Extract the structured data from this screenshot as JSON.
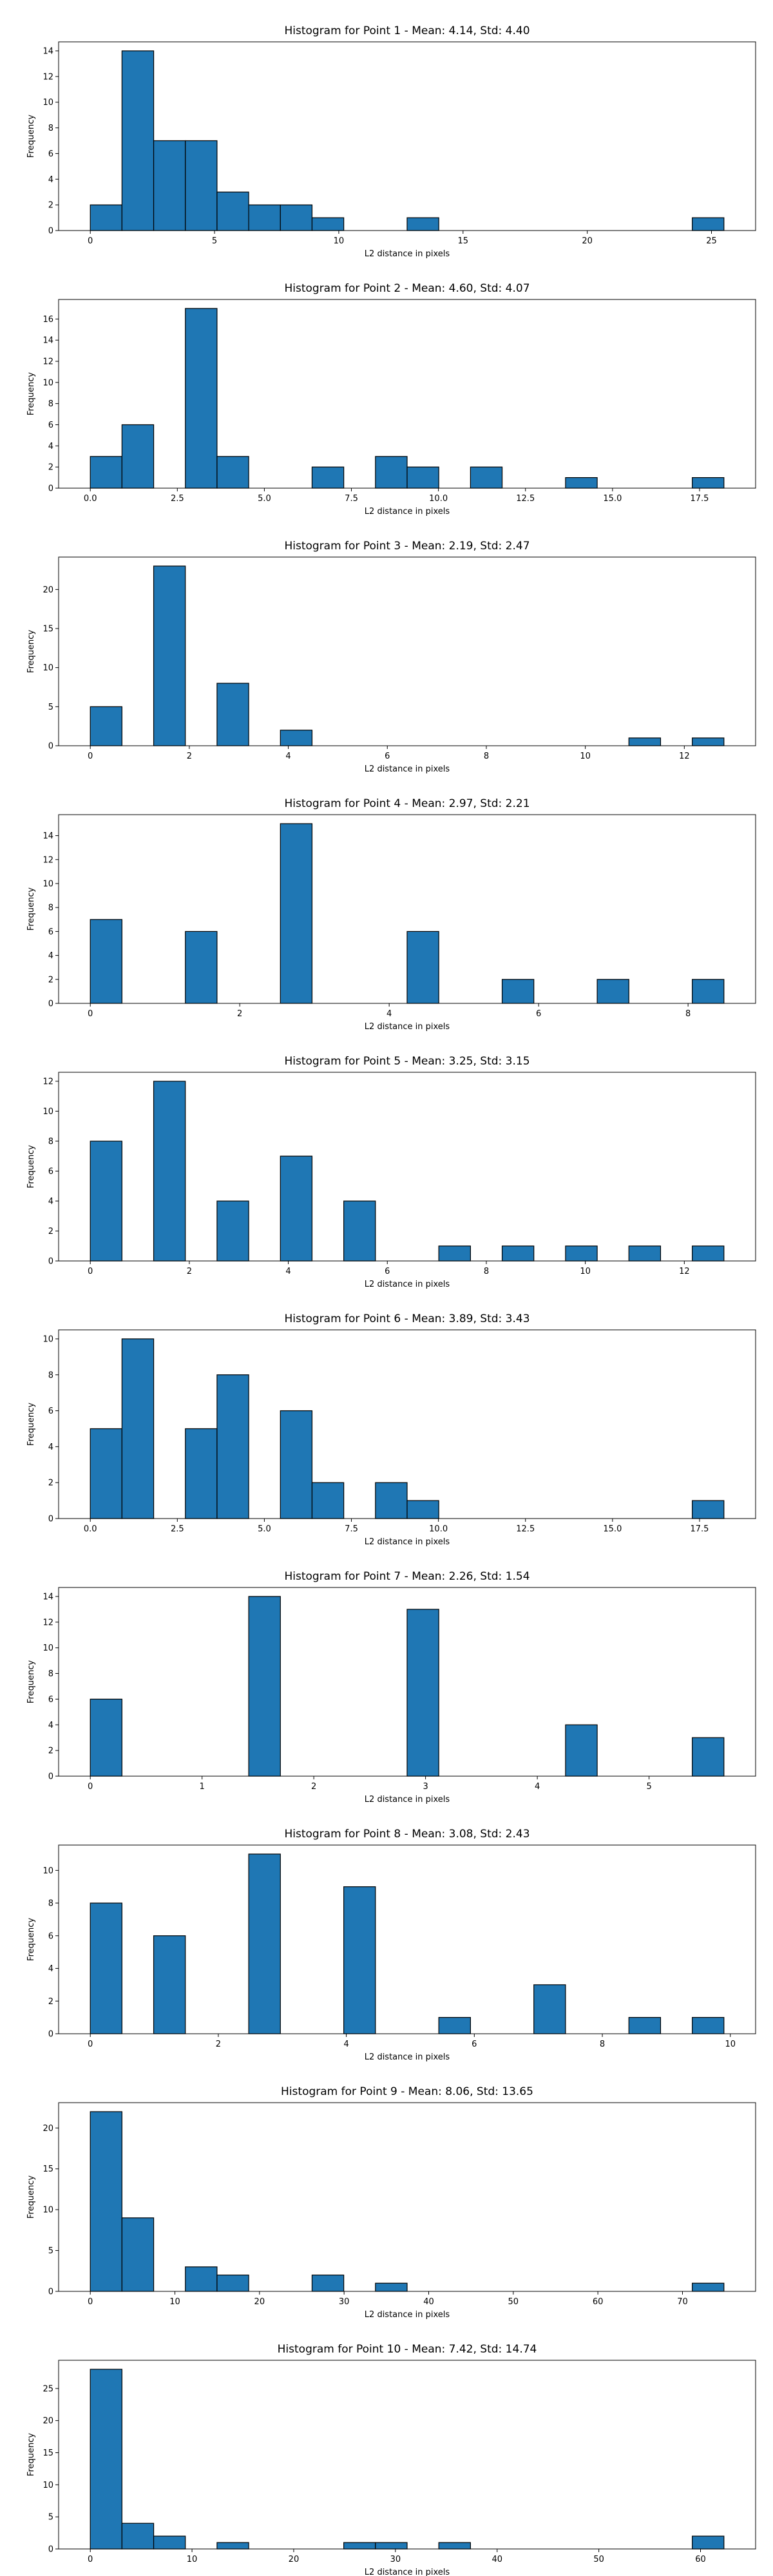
{
  "chart_data": [
    {
      "type": "histogram",
      "title": "Histogram for Point 1 - Mean: 4.14, Std: 4.40",
      "xlabel": "L2 distance in pixels",
      "ylabel": "Frequency",
      "color": "#1f77b4",
      "edgecolor": "#000000",
      "bins": [
        0,
        1.275,
        2.55,
        3.825,
        5.1,
        6.375,
        7.65,
        8.925,
        10.2,
        11.475,
        12.75,
        14.025,
        15.3,
        16.575,
        17.85,
        19.125,
        20.4,
        21.675,
        22.95,
        24.225,
        25.5
      ],
      "values": [
        2,
        14,
        7,
        7,
        3,
        2,
        2,
        1,
        0,
        0,
        1,
        0,
        0,
        0,
        0,
        0,
        0,
        0,
        0,
        1
      ],
      "xlim": [
        -1.275,
        26.775
      ],
      "xticks": [
        0,
        5,
        10,
        15,
        20,
        25
      ],
      "ylim": [
        0,
        14.7
      ],
      "yticks": [
        0,
        2,
        4,
        6,
        8,
        10,
        12,
        14
      ]
    },
    {
      "type": "histogram",
      "title": "Histogram for Point 2 - Mean: 4.60, Std: 4.07",
      "xlabel": "L2 distance in pixels",
      "ylabel": "Frequency",
      "color": "#1f77b4",
      "edgecolor": "#000000",
      "bins": [
        0,
        0.91,
        1.82,
        2.73,
        3.64,
        4.55,
        5.46,
        6.37,
        7.28,
        8.19,
        9.1,
        10.01,
        10.92,
        11.83,
        12.74,
        13.65,
        14.56,
        15.47,
        16.38,
        17.29,
        18.2
      ],
      "values": [
        3,
        6,
        0,
        17,
        3,
        0,
        0,
        2,
        0,
        3,
        2,
        0,
        2,
        0,
        0,
        1,
        0,
        0,
        0,
        1
      ],
      "xlim": [
        -0.91,
        19.11
      ],
      "xticks": [
        {
          "value": 0,
          "label": "0.0"
        },
        2.5,
        {
          "value": 5,
          "label": "5.0"
        },
        7.5,
        {
          "value": 10,
          "label": "10.0"
        },
        12.5,
        {
          "value": 15,
          "label": "15.0"
        },
        17.5
      ],
      "ylim": [
        0,
        17.85
      ],
      "yticks": [
        0,
        2,
        4,
        6,
        8,
        10,
        12,
        14,
        16
      ]
    },
    {
      "type": "histogram",
      "title": "Histogram for Point 3 - Mean: 2.19, Std: 2.47",
      "xlabel": "L2 distance in pixels",
      "ylabel": "Frequency",
      "color": "#1f77b4",
      "edgecolor": "#000000",
      "bins": [
        0,
        0.64,
        1.28,
        1.92,
        2.56,
        3.2,
        3.84,
        4.48,
        5.12,
        5.76,
        6.4,
        7.04,
        7.68,
        8.32,
        8.96,
        9.6,
        10.24,
        10.88,
        11.52,
        12.16,
        12.8
      ],
      "values": [
        5,
        0,
        23,
        0,
        8,
        0,
        2,
        0,
        0,
        0,
        0,
        0,
        0,
        0,
        0,
        0,
        0,
        1,
        0,
        1
      ],
      "xlim": [
        -0.64,
        13.44
      ],
      "xticks": [
        0,
        2,
        4,
        6,
        8,
        10,
        12
      ],
      "ylim": [
        0,
        24.15
      ],
      "yticks": [
        0,
        5,
        10,
        15,
        20
      ]
    },
    {
      "type": "histogram",
      "title": "Histogram for Point 4 - Mean: 2.97, Std: 2.21",
      "xlabel": "L2 distance in pixels",
      "ylabel": "Frequency",
      "color": "#1f77b4",
      "edgecolor": "#000000",
      "bins": [
        0,
        0.424,
        0.848,
        1.272,
        1.696,
        2.12,
        2.544,
        2.968,
        3.392,
        3.816,
        4.24,
        4.664,
        5.088,
        5.512,
        5.936,
        6.36,
        6.784,
        7.208,
        7.632,
        8.056,
        8.48
      ],
      "values": [
        7,
        0,
        0,
        6,
        0,
        0,
        15,
        0,
        0,
        0,
        6,
        0,
        0,
        2,
        0,
        0,
        2,
        0,
        0,
        2
      ],
      "xlim": [
        -0.424,
        8.904
      ],
      "xticks": [
        0,
        2,
        4,
        6,
        8
      ],
      "ylim": [
        0,
        15.75
      ],
      "yticks": [
        0,
        2,
        4,
        6,
        8,
        10,
        12,
        14
      ]
    },
    {
      "type": "histogram",
      "title": "Histogram for Point 5 - Mean: 3.25, Std: 3.15",
      "xlabel": "L2 distance in pixels",
      "ylabel": "Frequency",
      "color": "#1f77b4",
      "edgecolor": "#000000",
      "bins": [
        0,
        0.64,
        1.28,
        1.92,
        2.56,
        3.2,
        3.84,
        4.48,
        5.12,
        5.76,
        6.4,
        7.04,
        7.68,
        8.32,
        8.96,
        9.6,
        10.24,
        10.88,
        11.52,
        12.16,
        12.8
      ],
      "values": [
        8,
        0,
        12,
        0,
        4,
        0,
        7,
        0,
        4,
        0,
        0,
        1,
        0,
        1,
        0,
        1,
        0,
        1,
        0,
        1
      ],
      "xlim": [
        -0.64,
        13.44
      ],
      "xticks": [
        0,
        2,
        4,
        6,
        8,
        10,
        12
      ],
      "ylim": [
        0,
        12.6
      ],
      "yticks": [
        0,
        2,
        4,
        6,
        8,
        10,
        12
      ]
    },
    {
      "type": "histogram",
      "title": "Histogram for Point 6 - Mean: 3.89, Std: 3.43",
      "xlabel": "L2 distance in pixels",
      "ylabel": "Frequency",
      "color": "#1f77b4",
      "edgecolor": "#000000",
      "bins": [
        0,
        0.91,
        1.82,
        2.73,
        3.64,
        4.55,
        5.46,
        6.37,
        7.28,
        8.19,
        9.1,
        10.01,
        10.92,
        11.83,
        12.74,
        13.65,
        14.56,
        15.47,
        16.38,
        17.29,
        18.2
      ],
      "values": [
        5,
        10,
        0,
        5,
        8,
        0,
        6,
        2,
        0,
        2,
        1,
        0,
        0,
        0,
        0,
        0,
        0,
        0,
        0,
        1
      ],
      "xlim": [
        -0.91,
        19.11
      ],
      "xticks": [
        {
          "value": 0,
          "label": "0.0"
        },
        2.5,
        {
          "value": 5,
          "label": "5.0"
        },
        7.5,
        {
          "value": 10,
          "label": "10.0"
        },
        12.5,
        {
          "value": 15,
          "label": "15.0"
        },
        17.5
      ],
      "ylim": [
        0,
        10.5
      ],
      "yticks": [
        0,
        2,
        4,
        6,
        8,
        10
      ]
    },
    {
      "type": "histogram",
      "title": "Histogram for Point 7 - Mean: 2.26, Std: 1.54",
      "xlabel": "L2 distance in pixels",
      "ylabel": "Frequency",
      "color": "#1f77b4",
      "edgecolor": "#000000",
      "bins": [
        0,
        0.2835,
        0.567,
        0.8505,
        1.134,
        1.4175,
        1.701,
        1.9845,
        2.268,
        2.5515,
        2.835,
        3.1185,
        3.402,
        3.6855,
        3.969,
        4.2525,
        4.536,
        4.8195,
        5.103,
        5.3865,
        5.67
      ],
      "values": [
        6,
        0,
        0,
        0,
        0,
        14,
        0,
        0,
        0,
        0,
        13,
        0,
        0,
        0,
        0,
        4,
        0,
        0,
        0,
        3
      ],
      "xlim": [
        -0.2835,
        5.9535
      ],
      "xticks": [
        0,
        1,
        2,
        3,
        4,
        5
      ],
      "ylim": [
        0,
        14.7
      ],
      "yticks": [
        0,
        2,
        4,
        6,
        8,
        10,
        12,
        14
      ]
    },
    {
      "type": "histogram",
      "title": "Histogram for Point 8 - Mean: 3.08, Std: 2.43",
      "xlabel": "L2 distance in pixels",
      "ylabel": "Frequency",
      "color": "#1f77b4",
      "edgecolor": "#000000",
      "bins": [
        0,
        0.495,
        0.99,
        1.485,
        1.98,
        2.475,
        2.97,
        3.465,
        3.96,
        4.455,
        4.95,
        5.445,
        5.94,
        6.435,
        6.93,
        7.425,
        7.92,
        8.415,
        8.91,
        9.405,
        9.9
      ],
      "values": [
        8,
        0,
        6,
        0,
        0,
        11,
        0,
        0,
        9,
        0,
        0,
        1,
        0,
        0,
        3,
        0,
        0,
        1,
        0,
        1
      ],
      "xlim": [
        -0.495,
        10.395
      ],
      "xticks": [
        0,
        2,
        4,
        6,
        8,
        10
      ],
      "ylim": [
        0,
        11.55
      ],
      "yticks": [
        0,
        2,
        4,
        6,
        8,
        10
      ]
    },
    {
      "type": "histogram",
      "title": "Histogram for Point 9 - Mean: 8.06, Std: 13.65",
      "xlabel": "L2 distance in pixels",
      "ylabel": "Frequency",
      "color": "#1f77b4",
      "edgecolor": "#000000",
      "bins": [
        0,
        3.745,
        7.49,
        11.235,
        14.98,
        18.725,
        22.47,
        26.215,
        29.96,
        33.705,
        37.45,
        41.195,
        44.94,
        48.685,
        52.43,
        56.175,
        59.92,
        63.665,
        67.41,
        71.155,
        74.9
      ],
      "values": [
        22,
        9,
        0,
        3,
        2,
        0,
        0,
        2,
        0,
        1,
        0,
        0,
        0,
        0,
        0,
        0,
        0,
        0,
        0,
        1
      ],
      "xlim": [
        -3.745,
        78.645
      ],
      "xticks": [
        0,
        10,
        20,
        30,
        40,
        50,
        60,
        70
      ],
      "ylim": [
        0,
        23.1
      ],
      "yticks": [
        0,
        5,
        10,
        15,
        20
      ]
    },
    {
      "type": "histogram",
      "title": "Histogram for Point 10 - Mean: 7.42, Std: 14.74",
      "xlabel": "L2 distance in pixels",
      "ylabel": "Frequency",
      "color": "#1f77b4",
      "edgecolor": "#000000",
      "bins": [
        0,
        3.115,
        6.23,
        9.345,
        12.46,
        15.575,
        18.69,
        21.805,
        24.92,
        28.035,
        31.15,
        34.265,
        37.38,
        40.495,
        43.61,
        46.725,
        49.84,
        52.955,
        56.07,
        59.185,
        62.3
      ],
      "values": [
        28,
        4,
        2,
        0,
        1,
        0,
        0,
        0,
        1,
        1,
        0,
        1,
        0,
        0,
        0,
        0,
        0,
        0,
        0,
        2
      ],
      "xlim": [
        -3.115,
        65.415
      ],
      "xticks": [
        0,
        10,
        20,
        30,
        40,
        50,
        60
      ],
      "ylim": [
        0,
        29.4
      ],
      "yticks": [
        0,
        5,
        10,
        15,
        20,
        25
      ]
    }
  ]
}
